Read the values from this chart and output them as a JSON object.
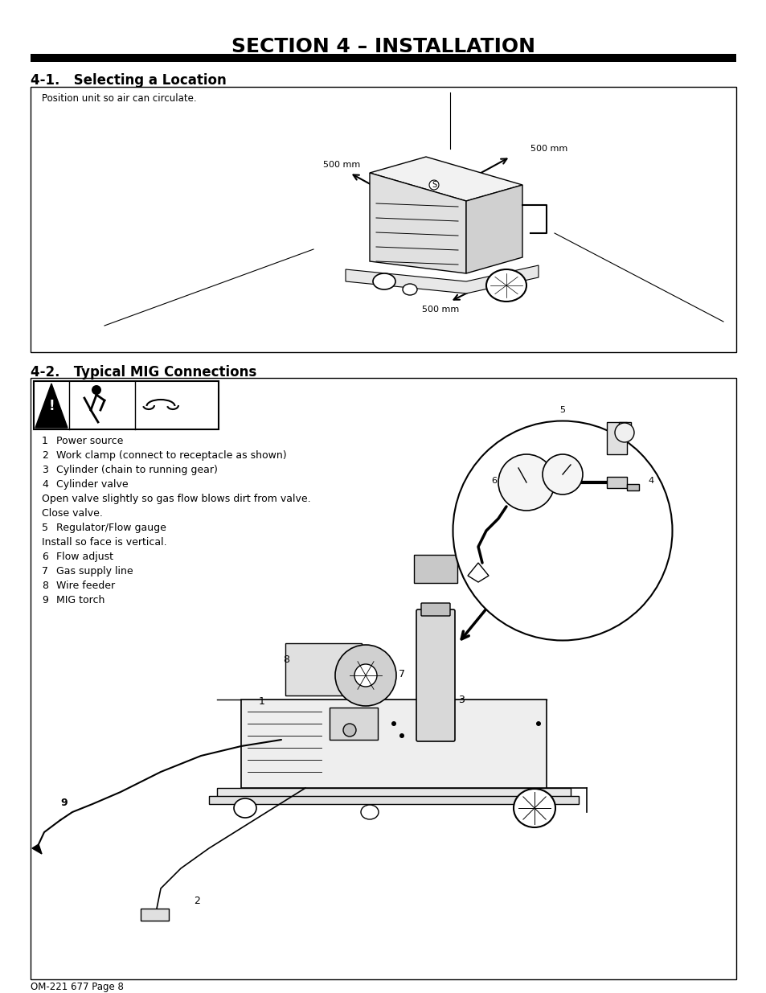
{
  "title": "SECTION 4 – INSTALLATION",
  "title_fontsize": 18,
  "title_fontweight": "bold",
  "background_color": "#ffffff",
  "section1_heading": "4-1.   Selecting a Location",
  "section1_inner_text": "Position unit so air can circulate.",
  "label_500mm_1": "500 mm",
  "label_500mm_2": "500 mm",
  "label_500mm_3": "500 mm",
  "section2_heading": "4-2.   Typical MIG Connections",
  "list_items": [
    [
      "1",
      "Power source"
    ],
    [
      "2",
      "Work clamp (connect to receptacle as shown)"
    ],
    [
      "3",
      "Cylinder (chain to running gear)"
    ],
    [
      "4",
      "Cylinder valve"
    ],
    [
      "",
      "Open valve slightly so gas flow blows dirt from valve."
    ],
    [
      "",
      "Close valve."
    ],
    [
      "5",
      "Regulator/Flow gauge"
    ],
    [
      "",
      "Install so face is vertical."
    ],
    [
      "6",
      "Flow adjust"
    ],
    [
      "7",
      "Gas supply line"
    ],
    [
      "8",
      "Wire feeder"
    ],
    [
      "9",
      "MIG torch"
    ]
  ],
  "footer_text": "OM-221 677 Page 8"
}
